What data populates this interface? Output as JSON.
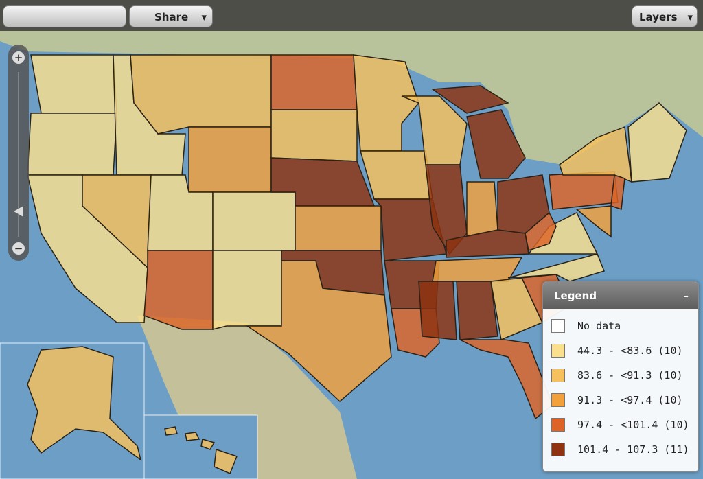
{
  "toolbar": {
    "share": "Share",
    "layers": "Layers"
  },
  "legend": {
    "title": "Legend",
    "collapse": "–",
    "items": [
      {
        "label": "No data",
        "color": "#ffffff"
      },
      {
        "label": "44.3 - <83.6 (10)",
        "color": "#f9df8e"
      },
      {
        "label": "83.6 - <91.3 (10)",
        "color": "#f6c15c"
      },
      {
        "label": "91.3 - <97.4 (10)",
        "color": "#f2a03c"
      },
      {
        "label": "97.4 - <101.4 (10)",
        "color": "#dd6426"
      },
      {
        "label": "101.4 - 107.3 (11)",
        "color": "#8e3210"
      }
    ]
  }
}
